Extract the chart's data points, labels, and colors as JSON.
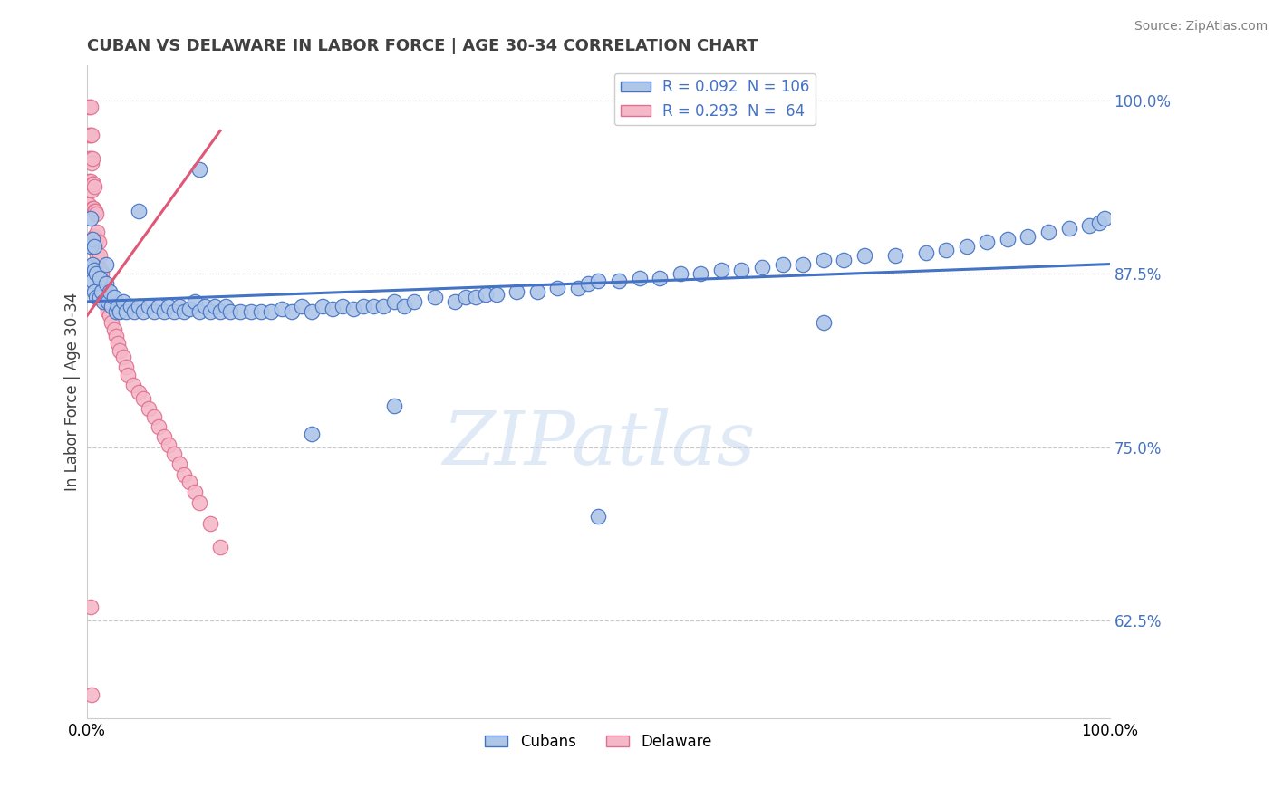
{
  "title": "CUBAN VS DELAWARE IN LABOR FORCE | AGE 30-34 CORRELATION CHART",
  "source": "Source: ZipAtlas.com",
  "ylabel": "In Labor Force | Age 30-34",
  "xlim": [
    0.0,
    1.0
  ],
  "ylim": [
    0.555,
    1.025
  ],
  "yticks": [
    0.625,
    0.75,
    0.875,
    1.0
  ],
  "ytick_labels": [
    "62.5%",
    "75.0%",
    "87.5%",
    "100.0%"
  ],
  "xticks": [
    0.0,
    1.0
  ],
  "xtick_labels": [
    "0.0%",
    "100.0%"
  ],
  "cubans_R": 0.092,
  "cubans_N": 106,
  "delaware_R": 0.293,
  "delaware_N": 64,
  "cubans_face_color": "#aec6e8",
  "cubans_edge_color": "#4472c4",
  "delaware_face_color": "#f4b8c8",
  "delaware_edge_color": "#e07090",
  "blue_line_color": "#4472c4",
  "pink_line_color": "#e05878",
  "grid_color": "#c8c8c8",
  "title_color": "#404040",
  "source_color": "#808080",
  "right_tick_color": "#4472c4",
  "watermark_text": "ZIPatlas",
  "cubans_x": [
    0.003,
    0.003,
    0.003,
    0.005,
    0.005,
    0.005,
    0.007,
    0.007,
    0.007,
    0.009,
    0.009,
    0.012,
    0.012,
    0.014,
    0.016,
    0.018,
    0.018,
    0.02,
    0.022,
    0.024,
    0.026,
    0.028,
    0.03,
    0.032,
    0.035,
    0.038,
    0.042,
    0.046,
    0.05,
    0.055,
    0.06,
    0.065,
    0.07,
    0.075,
    0.08,
    0.085,
    0.09,
    0.095,
    0.1,
    0.105,
    0.11,
    0.115,
    0.12,
    0.125,
    0.13,
    0.135,
    0.14,
    0.15,
    0.16,
    0.17,
    0.18,
    0.19,
    0.2,
    0.21,
    0.22,
    0.23,
    0.24,
    0.25,
    0.26,
    0.27,
    0.28,
    0.29,
    0.3,
    0.31,
    0.32,
    0.34,
    0.36,
    0.37,
    0.38,
    0.39,
    0.4,
    0.42,
    0.44,
    0.46,
    0.48,
    0.49,
    0.5,
    0.52,
    0.54,
    0.56,
    0.58,
    0.6,
    0.62,
    0.64,
    0.66,
    0.68,
    0.7,
    0.72,
    0.74,
    0.76,
    0.79,
    0.82,
    0.84,
    0.86,
    0.88,
    0.9,
    0.92,
    0.94,
    0.96,
    0.98,
    0.99,
    0.995,
    0.05,
    0.11,
    0.22,
    0.3,
    0.5,
    0.72
  ],
  "cubans_y": [
    0.88,
    0.895,
    0.915,
    0.87,
    0.882,
    0.9,
    0.862,
    0.878,
    0.895,
    0.858,
    0.875,
    0.858,
    0.872,
    0.862,
    0.855,
    0.868,
    0.882,
    0.855,
    0.862,
    0.852,
    0.858,
    0.848,
    0.852,
    0.848,
    0.855,
    0.848,
    0.852,
    0.848,
    0.852,
    0.848,
    0.852,
    0.848,
    0.852,
    0.848,
    0.852,
    0.848,
    0.852,
    0.848,
    0.85,
    0.855,
    0.848,
    0.852,
    0.848,
    0.852,
    0.848,
    0.852,
    0.848,
    0.848,
    0.848,
    0.848,
    0.848,
    0.85,
    0.848,
    0.852,
    0.848,
    0.852,
    0.85,
    0.852,
    0.85,
    0.852,
    0.852,
    0.852,
    0.855,
    0.852,
    0.855,
    0.858,
    0.855,
    0.858,
    0.858,
    0.86,
    0.86,
    0.862,
    0.862,
    0.865,
    0.865,
    0.868,
    0.87,
    0.87,
    0.872,
    0.872,
    0.875,
    0.875,
    0.878,
    0.878,
    0.88,
    0.882,
    0.882,
    0.885,
    0.885,
    0.888,
    0.888,
    0.89,
    0.892,
    0.895,
    0.898,
    0.9,
    0.902,
    0.905,
    0.908,
    0.91,
    0.912,
    0.915,
    0.92,
    0.95,
    0.76,
    0.78,
    0.7,
    0.84
  ],
  "delaware_x": [
    0.002,
    0.002,
    0.002,
    0.002,
    0.002,
    0.003,
    0.003,
    0.003,
    0.003,
    0.004,
    0.004,
    0.004,
    0.005,
    0.005,
    0.005,
    0.006,
    0.006,
    0.007,
    0.007,
    0.007,
    0.008,
    0.008,
    0.009,
    0.009,
    0.01,
    0.01,
    0.011,
    0.011,
    0.012,
    0.013,
    0.014,
    0.015,
    0.016,
    0.017,
    0.018,
    0.019,
    0.02,
    0.022,
    0.024,
    0.026,
    0.028,
    0.03,
    0.032,
    0.035,
    0.038,
    0.04,
    0.045,
    0.05,
    0.055,
    0.06,
    0.065,
    0.07,
    0.075,
    0.08,
    0.085,
    0.09,
    0.095,
    0.1,
    0.105,
    0.11,
    0.12,
    0.13,
    0.003,
    0.004
  ],
  "delaware_y": [
    0.995,
    0.975,
    0.958,
    0.942,
    0.925,
    0.995,
    0.975,
    0.958,
    0.942,
    0.975,
    0.955,
    0.935,
    0.958,
    0.94,
    0.922,
    0.94,
    0.922,
    0.938,
    0.92,
    0.902,
    0.92,
    0.902,
    0.918,
    0.9,
    0.905,
    0.888,
    0.898,
    0.88,
    0.888,
    0.878,
    0.875,
    0.87,
    0.865,
    0.86,
    0.858,
    0.852,
    0.848,
    0.845,
    0.84,
    0.835,
    0.83,
    0.825,
    0.82,
    0.815,
    0.808,
    0.802,
    0.795,
    0.79,
    0.785,
    0.778,
    0.772,
    0.765,
    0.758,
    0.752,
    0.745,
    0.738,
    0.73,
    0.725,
    0.718,
    0.71,
    0.695,
    0.678,
    0.635,
    0.572
  ],
  "blue_line_x": [
    0.0,
    1.0
  ],
  "blue_line_y": [
    0.855,
    0.882
  ],
  "pink_line_x": [
    0.0,
    0.13
  ],
  "pink_line_y": [
    0.845,
    0.978
  ]
}
